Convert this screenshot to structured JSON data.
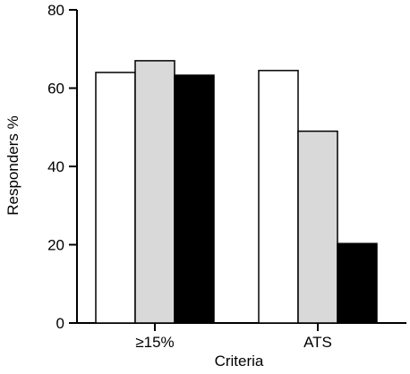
{
  "chart_data": {
    "type": "bar",
    "categories": [
      "≥15%",
      "ATS"
    ],
    "series": [
      {
        "values": [
          64,
          64.5
        ],
        "fill": "#ffffff"
      },
      {
        "values": [
          67,
          49
        ],
        "fill": "#d9d9d9"
      },
      {
        "values": [
          63.3,
          20.3
        ],
        "fill": "#000000"
      }
    ],
    "ylim": [
      0,
      80
    ],
    "yticks": [
      0,
      20,
      40,
      60,
      80
    ],
    "xlabel": "Criteria",
    "ylabel": "Responders %",
    "grid": false,
    "legend": "none"
  }
}
